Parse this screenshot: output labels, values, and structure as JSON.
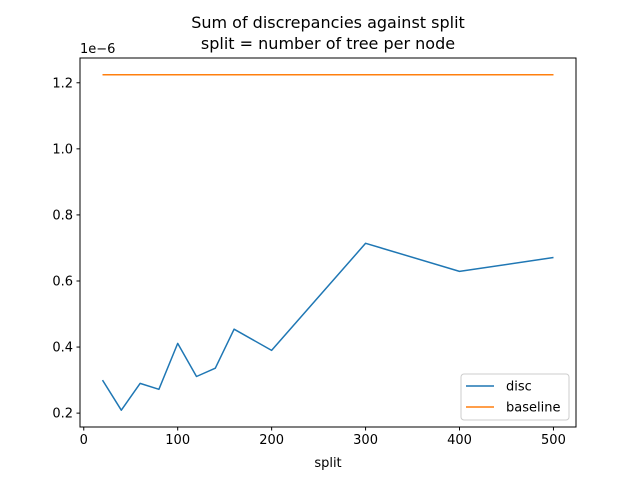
{
  "chart_data": {
    "type": "line",
    "title": "Sum of discrepancies against split",
    "subtitle": "split = number of tree per node",
    "xlabel": "split",
    "ylabel": "",
    "y_offset_label": "1e−6",
    "xlim": [
      -4,
      524
    ],
    "ylim": [
      0.158,
      1.275
    ],
    "x_ticks": [
      0,
      100,
      200,
      300,
      400,
      500
    ],
    "x_tick_labels": [
      "0",
      "100",
      "200",
      "300",
      "400",
      "500"
    ],
    "y_ticks": [
      0.2,
      0.4,
      0.6,
      0.8,
      1.0,
      1.2
    ],
    "y_tick_labels": [
      "0.2",
      "0.4",
      "0.6",
      "0.8",
      "1.0",
      "1.2"
    ],
    "grid": false,
    "legend_position": "lower-right",
    "series": [
      {
        "name": "disc",
        "color": "#1f77b4",
        "x": [
          20,
          40,
          60,
          80,
          100,
          120,
          140,
          160,
          200,
          300,
          400,
          500
        ],
        "y": [
          0.3,
          0.209,
          0.29,
          0.272,
          0.411,
          0.311,
          0.336,
          0.454,
          0.39,
          0.714,
          0.629,
          0.671
        ]
      },
      {
        "name": "baseline",
        "color": "#ff7f0e",
        "x": [
          20,
          500
        ],
        "y": [
          1.224,
          1.224
        ]
      }
    ]
  }
}
